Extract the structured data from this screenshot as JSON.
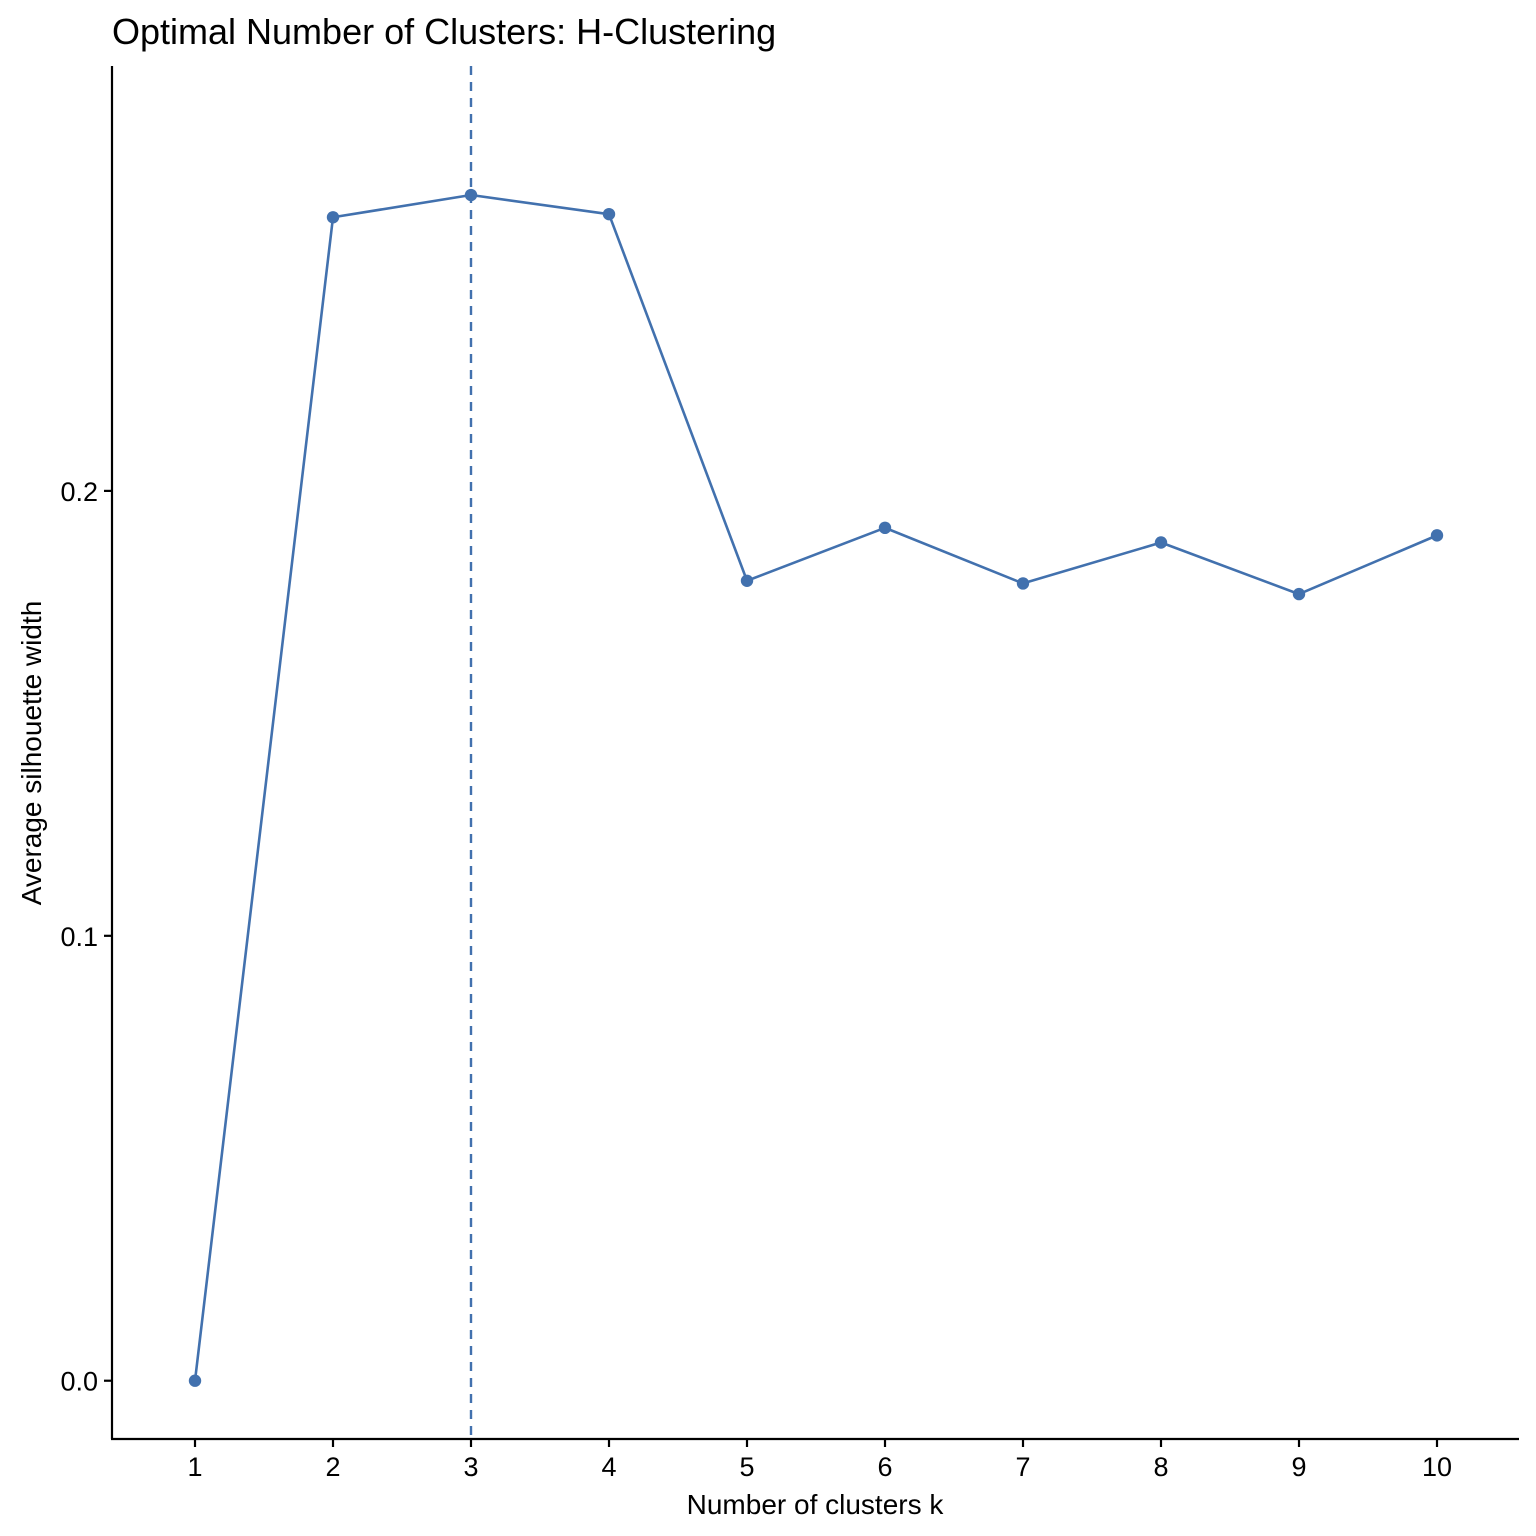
{
  "chart_data": {
    "type": "line",
    "title": "Optimal Number of Clusters: H-Clustering",
    "xlabel": "Number of clusters k",
    "ylabel": "Average silhouette width",
    "categories": [
      "1",
      "2",
      "3",
      "4",
      "5",
      "6",
      "7",
      "8",
      "9",
      "10"
    ],
    "series": [
      {
        "name": "Average silhouette width",
        "color": "#4271AE",
        "values": [
          0.0,
          0.2615,
          0.2665,
          0.2622,
          0.1798,
          0.1917,
          0.1792,
          0.1884,
          0.1768,
          0.19
        ]
      }
    ],
    "optimal_k": 3,
    "ylim": [
      -0.0131,
      0.2955
    ],
    "yticks": [
      0.0,
      0.1,
      0.2
    ],
    "ytick_labels": [
      "0.0",
      "0.1",
      "0.2"
    ],
    "grid": false,
    "colors": {
      "line": "#4271AE",
      "vline": "#4271AE",
      "axis": "#000000"
    }
  }
}
